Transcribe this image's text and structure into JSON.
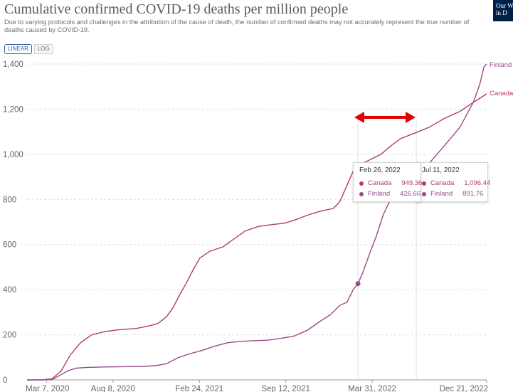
{
  "header": {
    "title": "Cumulative confirmed COVID-19 deaths per million people",
    "subtitle": "Due to varying protocols and challenges in the attribution of the cause of death, the number of confirmed deaths may not accurately represent the true number of deaths caused by COVID-19.",
    "logo_line1": "Our W",
    "logo_line2": "in D",
    "logo_color": "#002147"
  },
  "scale_toggle": {
    "linear_label": "LINEAR",
    "log_label": "LOG",
    "selected": "LINEAR",
    "accent": "#3360a9"
  },
  "tooltip_left": {
    "date": "Feb 26, 2022",
    "rows": [
      {
        "name": "Canada",
        "value": "949.36"
      },
      {
        "name": "Finland",
        "value": "426.66"
      }
    ]
  },
  "tooltip_right": {
    "date": "Jul 11, 2022",
    "rows": [
      {
        "name": "Canada",
        "value": "1,096.44"
      },
      {
        "name": "Finland",
        "value": "891.76"
      }
    ]
  },
  "annotation": {
    "type": "double-headed-arrow",
    "color": "#e00000"
  },
  "chart_data": {
    "type": "line",
    "title": "Cumulative confirmed COVID-19 deaths per million people",
    "xlabel": "",
    "ylabel": "",
    "x_ticks": [
      "Mar 7, 2020",
      "Aug 8, 2020",
      "Feb 24, 2021",
      "Sep 12, 2021",
      "Mar 31, 2022",
      "Dec 21, 2022"
    ],
    "y_ticks": [
      "0",
      "200",
      "400",
      "600",
      "800",
      "1,000",
      "1,200",
      "1,400"
    ],
    "ylim": [
      0,
      1400
    ],
    "xlim": [
      "2020-01-22",
      "2022-12-21"
    ],
    "grid": "horizontal dashed",
    "legend": "inline labels at line ends",
    "series": [
      {
        "name": "Canada",
        "color": "#b03f62",
        "points": [
          [
            "2020-01-22",
            0
          ],
          [
            "2020-02-25",
            0
          ],
          [
            "2020-03-20",
            5
          ],
          [
            "2020-04-10",
            40
          ],
          [
            "2020-05-01",
            110
          ],
          [
            "2020-05-25",
            165
          ],
          [
            "2020-06-20",
            200
          ],
          [
            "2020-07-20",
            214
          ],
          [
            "2020-08-20",
            222
          ],
          [
            "2020-10-01",
            228
          ],
          [
            "2020-11-01",
            240
          ],
          [
            "2020-11-20",
            250
          ],
          [
            "2020-12-10",
            280
          ],
          [
            "2020-12-25",
            320
          ],
          [
            "2021-01-10",
            380
          ],
          [
            "2021-01-25",
            430
          ],
          [
            "2021-02-10",
            490
          ],
          [
            "2021-02-25",
            540
          ],
          [
            "2021-03-20",
            570
          ],
          [
            "2021-04-20",
            590
          ],
          [
            "2021-05-15",
            625
          ],
          [
            "2021-06-10",
            660
          ],
          [
            "2021-07-10",
            680
          ],
          [
            "2021-08-10",
            688
          ],
          [
            "2021-09-10",
            695
          ],
          [
            "2021-10-05",
            710
          ],
          [
            "2021-11-01",
            730
          ],
          [
            "2021-12-01",
            748
          ],
          [
            "2021-12-31",
            760
          ],
          [
            "2022-01-15",
            790
          ],
          [
            "2022-01-31",
            860
          ],
          [
            "2022-02-15",
            925
          ],
          [
            "2022-02-26",
            949.36
          ],
          [
            "2022-03-20",
            970
          ],
          [
            "2022-04-20",
            1000
          ],
          [
            "2022-05-15",
            1040
          ],
          [
            "2022-06-05",
            1070
          ],
          [
            "2022-07-11",
            1096.44
          ],
          [
            "2022-08-10",
            1120
          ],
          [
            "2022-09-15",
            1160
          ],
          [
            "2022-10-20",
            1190
          ],
          [
            "2022-11-20",
            1230
          ],
          [
            "2022-12-21",
            1268
          ]
        ]
      },
      {
        "name": "Finland",
        "color": "#9a4a8c",
        "points": [
          [
            "2020-01-22",
            0
          ],
          [
            "2020-02-25",
            0
          ],
          [
            "2020-03-20",
            2
          ],
          [
            "2020-04-05",
            18
          ],
          [
            "2020-04-25",
            40
          ],
          [
            "2020-05-15",
            52
          ],
          [
            "2020-06-05",
            55
          ],
          [
            "2020-07-10",
            57
          ],
          [
            "2020-08-15",
            58
          ],
          [
            "2020-09-15",
            59
          ],
          [
            "2020-10-15",
            60
          ],
          [
            "2020-11-15",
            63
          ],
          [
            "2020-12-10",
            72
          ],
          [
            "2021-01-05",
            98
          ],
          [
            "2021-01-31",
            115
          ],
          [
            "2021-03-01",
            130
          ],
          [
            "2021-04-01",
            150
          ],
          [
            "2021-05-01",
            165
          ],
          [
            "2021-06-01",
            171
          ],
          [
            "2021-07-01",
            174
          ],
          [
            "2021-08-01",
            176
          ],
          [
            "2021-09-01",
            184
          ],
          [
            "2021-10-01",
            194
          ],
          [
            "2021-11-01",
            220
          ],
          [
            "2021-12-01",
            260
          ],
          [
            "2021-12-25",
            290
          ],
          [
            "2022-01-15",
            330
          ],
          [
            "2022-02-01",
            345
          ],
          [
            "2022-02-15",
            400
          ],
          [
            "2022-02-26",
            426.66
          ],
          [
            "2022-03-10",
            480
          ],
          [
            "2022-03-25",
            560
          ],
          [
            "2022-04-10",
            640
          ],
          [
            "2022-04-25",
            730
          ],
          [
            "2022-05-10",
            790
          ],
          [
            "2022-06-05",
            850
          ],
          [
            "2022-07-11",
            891.76
          ],
          [
            "2022-08-10",
            960
          ],
          [
            "2022-09-15",
            1040
          ],
          [
            "2022-10-20",
            1120
          ],
          [
            "2022-11-20",
            1230
          ],
          [
            "2022-12-05",
            1310
          ],
          [
            "2022-12-15",
            1390
          ],
          [
            "2022-12-21",
            1400
          ]
        ]
      }
    ]
  }
}
